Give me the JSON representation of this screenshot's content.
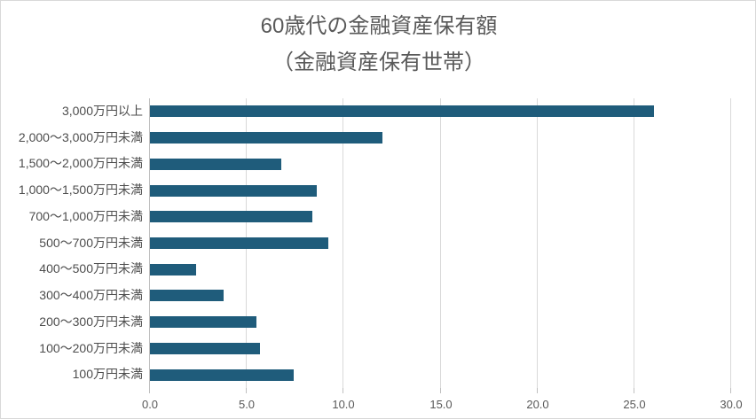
{
  "chart_data": {
    "type": "bar",
    "orientation": "horizontal",
    "title": "60歳代の金融資産保有額",
    "subtitle": "（金融資産保有世帯）",
    "categories": [
      "3,000万円以上",
      "2,000～3,000万円未満",
      "1,500～2,000万円未満",
      "1,000～1,500万円未満",
      "700～1,000万円未満",
      "500～700万円未満",
      "400～500万円未満",
      "300～400万円未満",
      "200～300万円未満",
      "100～200万円未満",
      "100万円未満"
    ],
    "values": [
      26.0,
      12.0,
      6.8,
      8.6,
      8.4,
      9.2,
      2.4,
      3.8,
      5.5,
      5.7,
      7.4
    ],
    "xlim": [
      0,
      30
    ],
    "x_ticks": [
      "0.0",
      "5.0",
      "10.0",
      "15.0",
      "20.0",
      "25.0",
      "30.0"
    ],
    "xlabel": "",
    "ylabel": "",
    "grid": true,
    "legend": false,
    "bar_color": "#1f5c7b",
    "gridline_color": "#d9d9d9",
    "axis_color": "#bfbfbf",
    "text_color": "#595959"
  }
}
